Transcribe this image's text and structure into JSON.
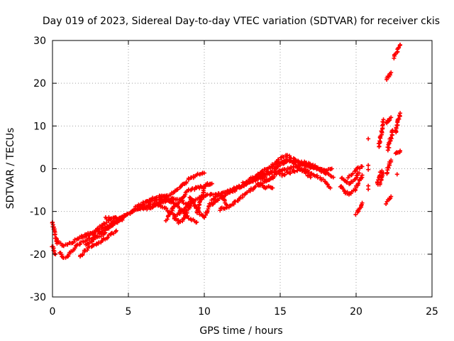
{
  "chart_data": {
    "type": "scatter",
    "title": "Day 019 of 2023, Sidereal Day-to-day VTEC variation (SDTVAR) for receiver ckis",
    "xlabel": "GPS time / hours",
    "ylabel": "SDTVAR / TECUs",
    "xlim": [
      0,
      25
    ],
    "ylim": [
      -30,
      30
    ],
    "xticks": [
      0,
      5,
      10,
      15,
      20,
      25
    ],
    "yticks": [
      -30,
      -20,
      -10,
      0,
      10,
      20,
      30
    ],
    "xtick_labels": [
      "0",
      "5",
      "10",
      "15",
      "20",
      "25"
    ],
    "ytick_labels": [
      "-30",
      "-20",
      "-10",
      "0",
      "10",
      "20",
      "30"
    ],
    "grid": true,
    "marker": "+",
    "series_color": "#ff0000",
    "tracks": [
      {
        "name": "track-a",
        "x": [
          0.0,
          0.1,
          0.2,
          0.3
        ],
        "y": [
          -12.5,
          -14,
          -16,
          -17.5
        ]
      },
      {
        "name": "track-b",
        "x": [
          0.0,
          0.1,
          0.2
        ],
        "y": [
          -18,
          -19,
          -20
        ]
      },
      {
        "name": "track-c",
        "x": [
          0.5,
          0.7,
          1.0,
          1.3,
          1.6,
          2.0,
          2.4,
          2.8,
          3.2,
          3.6,
          4.0,
          4.4
        ],
        "y": [
          -19.5,
          -21,
          -20.5,
          -19,
          -18,
          -17,
          -16.5,
          -16,
          -15,
          -14,
          -13,
          -12
        ]
      },
      {
        "name": "track-d",
        "x": [
          0.4,
          0.7,
          1.0,
          1.4,
          1.8,
          2.2,
          2.6,
          3.0,
          3.4,
          3.8,
          4.2
        ],
        "y": [
          -17,
          -18,
          -17.5,
          -17,
          -16,
          -15.5,
          -15,
          -14,
          -13,
          -12,
          -11.5
        ]
      },
      {
        "name": "track-e",
        "x": [
          1.8,
          2.2,
          2.6,
          3.0,
          3.4,
          3.8,
          4.2
        ],
        "y": [
          -20.5,
          -19,
          -18,
          -17.5,
          -16.5,
          -15.5,
          -14.5
        ]
      },
      {
        "name": "track-f",
        "x": [
          2.2,
          2.6,
          3.0,
          3.4,
          3.8,
          4.2,
          4.6
        ],
        "y": [
          -18,
          -17,
          -16,
          -15,
          -13.5,
          -12.5,
          -12
        ]
      },
      {
        "name": "track-g",
        "x": [
          2.0,
          2.4,
          2.8,
          3.2,
          3.6,
          4.0,
          4.4,
          4.8
        ],
        "y": [
          -16,
          -15.5,
          -15,
          -14,
          -13.5,
          -12.5,
          -11.5,
          -11
        ]
      },
      {
        "name": "track-h",
        "x": [
          3.5,
          4.0,
          4.5,
          5.0,
          5.5,
          6.0,
          6.5,
          7.0,
          7.5
        ],
        "y": [
          -11.5,
          -11.5,
          -11.8,
          -10.5,
          -9.5,
          -8.5,
          -7,
          -6.5,
          -6.5
        ]
      },
      {
        "name": "track-i",
        "x": [
          4.5,
          5.0,
          5.5,
          6.0,
          6.5,
          7.0,
          7.5,
          8.0
        ],
        "y": [
          -12,
          -10.5,
          -9.5,
          -9,
          -8.5,
          -8,
          -7.5,
          -7
        ]
      },
      {
        "name": "track-j",
        "x": [
          5.5,
          6.0,
          6.5,
          7.0,
          7.5,
          8.0,
          8.5,
          9.0,
          9.5,
          10.0
        ],
        "y": [
          -9,
          -8,
          -7.5,
          -7,
          -6.5,
          -5.5,
          -4,
          -2.5,
          -1.5,
          -1
        ]
      },
      {
        "name": "track-k",
        "x": [
          6.0,
          6.5,
          7.0,
          7.5,
          8.0,
          8.5,
          9.0
        ],
        "y": [
          -9.5,
          -9,
          -8,
          -7.5,
          -7,
          -7.5,
          -8.5
        ]
      },
      {
        "name": "track-l",
        "x": [
          6.5,
          7.0,
          7.5,
          8.0,
          8.5,
          9.0,
          9.5
        ],
        "y": [
          -9,
          -8,
          -7,
          -8,
          -10,
          -11.5,
          -12.5
        ]
      },
      {
        "name": "track-m",
        "x": [
          7.0,
          7.5,
          8.0,
          8.3,
          8.6,
          9.0,
          9.3
        ],
        "y": [
          -8.5,
          -9.5,
          -11,
          -12.5,
          -12,
          -9,
          -7.5
        ]
      },
      {
        "name": "track-n",
        "x": [
          7.5,
          8.0,
          8.5,
          9.0,
          9.5,
          10.0,
          10.5
        ],
        "y": [
          -12,
          -9,
          -7,
          -5,
          -4.5,
          -4,
          -3.5
        ]
      },
      {
        "name": "track-o",
        "x": [
          8.0,
          8.5,
          9.0,
          9.5,
          10.0,
          10.5,
          11.0,
          11.5
        ],
        "y": [
          -11.5,
          -10,
          -8,
          -7,
          -6.5,
          -6,
          -6,
          -5.5
        ]
      },
      {
        "name": "track-p",
        "x": [
          9.0,
          9.3,
          9.6,
          10.0,
          10.3,
          10.6,
          11.0,
          11.3,
          11.5
        ],
        "y": [
          -6.5,
          -8,
          -10,
          -11.5,
          -9,
          -7,
          -6,
          -7,
          -9
        ]
      },
      {
        "name": "track-q",
        "x": [
          9.5,
          9.8,
          10.0,
          10.2,
          10.5
        ],
        "y": [
          -10.5,
          -7,
          -4.5,
          -3.5,
          -3.5
        ]
      },
      {
        "name": "track-r",
        "x": [
          10.5,
          11.0,
          11.5,
          12.0,
          12.5,
          13.0,
          13.5,
          14.0,
          14.5,
          15.0
        ],
        "y": [
          -8.5,
          -7,
          -6,
          -5,
          -4,
          -3,
          -2,
          -1.5,
          -1,
          -0.5
        ]
      },
      {
        "name": "track-s",
        "x": [
          11.0,
          11.5,
          12.0,
          12.5,
          13.0,
          13.5,
          14.0,
          14.5
        ],
        "y": [
          -9.5,
          -9,
          -8,
          -6.5,
          -5,
          -4,
          -3,
          -2
        ]
      },
      {
        "name": "track-t",
        "x": [
          11.5,
          12.0,
          12.5,
          13.0,
          13.5,
          14.0
        ],
        "y": [
          -5.5,
          -4.5,
          -4,
          -3,
          -2.5,
          -2
        ]
      },
      {
        "name": "track-u",
        "x": [
          12.5,
          13.0,
          13.5,
          14.0,
          14.5,
          15.0,
          15.5,
          16.0,
          16.5,
          17.0,
          17.5,
          18.0
        ],
        "y": [
          -3.5,
          -2.5,
          -1.5,
          -1,
          -0.5,
          1,
          2,
          1.5,
          1,
          0.5,
          0,
          -0.5
        ]
      },
      {
        "name": "track-v",
        "x": [
          13.5,
          14.0,
          14.5,
          15.0,
          15.5,
          16.0,
          16.5,
          17.0,
          17.5,
          18.0
        ],
        "y": [
          -1.5,
          0,
          0.5,
          2.5,
          3,
          2,
          1.5,
          1,
          0,
          -1
        ]
      },
      {
        "name": "track-w",
        "x": [
          14.0,
          14.5,
          15.0,
          15.5,
          16.0,
          16.5,
          17.0,
          17.5,
          18.0,
          18.5
        ],
        "y": [
          -3,
          -2,
          -0.5,
          0,
          0.5,
          1,
          0.5,
          0,
          -1,
          -2
        ]
      },
      {
        "name": "track-x",
        "x": [
          15.0,
          15.5,
          16.0,
          16.5,
          17.0,
          17.5,
          18.0,
          18.3
        ],
        "y": [
          -1.5,
          -1,
          -0.5,
          0,
          -1,
          -2,
          -3,
          -4.5
        ]
      },
      {
        "name": "track-y",
        "x": [
          14.5,
          15.0,
          15.5,
          16.0,
          16.5,
          17.0
        ],
        "y": [
          1,
          1.5,
          2,
          1,
          -0.5,
          -2
        ]
      },
      {
        "name": "track-z",
        "x": [
          13.5,
          13.8,
          14.0,
          14.2,
          14.5
        ],
        "y": [
          -3.5,
          -4,
          -4.5,
          -4,
          -4.5
        ]
      },
      {
        "name": "track-aa",
        "x": [
          17.0,
          17.5,
          18.0,
          18.4
        ],
        "y": [
          0.5,
          0,
          -0.5,
          0
        ]
      },
      {
        "name": "track-ab",
        "x": [
          19.0,
          19.3,
          19.6,
          19.9,
          20.2
        ],
        "y": [
          -2,
          -3,
          -3.5,
          -2.5,
          -1
        ]
      },
      {
        "name": "track-ac",
        "x": [
          19.0,
          19.3,
          19.6,
          19.9,
          20.2,
          20.4
        ],
        "y": [
          -4,
          -5.5,
          -6,
          -5,
          -3,
          -1.5
        ]
      },
      {
        "name": "track-ad",
        "x": [
          19.5,
          19.8,
          20.1,
          20.4
        ],
        "y": [
          -2,
          -1,
          0,
          0.5
        ]
      },
      {
        "name": "track-ae",
        "x": [
          20.0,
          20.1,
          20.2,
          20.3,
          20.4
        ],
        "y": [
          -10.5,
          -10,
          -9.5,
          -9,
          -8
        ]
      },
      {
        "name": "track-af",
        "x": [
          21.4,
          21.5,
          21.6,
          21.7
        ],
        "y": [
          -3.5,
          -2,
          -1,
          -0.5
        ]
      },
      {
        "name": "track-ag",
        "x": [
          21.5,
          21.6,
          21.7,
          21.8
        ],
        "y": [
          5,
          7,
          9,
          11.5
        ]
      },
      {
        "name": "track-ah",
        "x": [
          21.6,
          21.7,
          21.8
        ],
        "y": [
          -3.5,
          -2,
          -1
        ]
      },
      {
        "name": "track-ai",
        "x": [
          22.0,
          22.1,
          22.2,
          22.3
        ],
        "y": [
          -8,
          -7.5,
          -7,
          -6.5
        ]
      },
      {
        "name": "track-aj",
        "x": [
          22.0,
          22.1,
          22.2,
          22.3
        ],
        "y": [
          -1,
          0,
          1,
          2
        ]
      },
      {
        "name": "track-ak",
        "x": [
          22.1,
          22.2,
          22.3,
          22.4
        ],
        "y": [
          4.5,
          6,
          7.5,
          9
        ]
      },
      {
        "name": "track-al",
        "x": [
          22.0,
          22.1,
          22.2,
          22.3
        ],
        "y": [
          10.5,
          11,
          11.5,
          12
        ]
      },
      {
        "name": "track-am",
        "x": [
          22.0,
          22.1,
          22.2,
          22.3
        ],
        "y": [
          21,
          21.5,
          22,
          22.5
        ]
      },
      {
        "name": "track-an",
        "x": [
          22.6,
          22.7,
          22.8,
          22.9
        ],
        "y": [
          8.5,
          10,
          11.5,
          13
        ]
      },
      {
        "name": "track-ao",
        "x": [
          22.6,
          22.7,
          22.8,
          22.9
        ],
        "y": [
          3.5,
          3.8,
          4,
          4.2
        ]
      },
      {
        "name": "track-ap",
        "x": [
          22.5,
          22.6,
          22.7,
          22.8,
          22.9
        ],
        "y": [
          26,
          27,
          27.5,
          28.5,
          29
        ]
      }
    ],
    "isolated_points": [
      {
        "x": 20.8,
        "y": 7
      },
      {
        "x": 20.8,
        "y": -0.2
      },
      {
        "x": 20.8,
        "y": 0.8
      },
      {
        "x": 20.8,
        "y": -4
      },
      {
        "x": 20.8,
        "y": -4.8
      },
      {
        "x": 22.7,
        "y": -1.3
      }
    ]
  }
}
